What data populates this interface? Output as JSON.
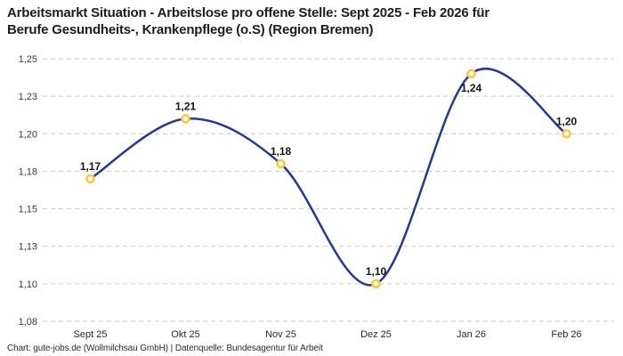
{
  "title": {
    "line1": "Arbeitsmarkt Situation - Arbeitslose pro offene Stelle: Sept 2025 - Feb 2026 für",
    "line2": "Berufe Gesundheits-, Krankenpflege (o.S) (Region Bremen)"
  },
  "footer": {
    "credit": "Chart: gute-jobs.de (Wollmilchsau GmbH) | Datenquelle: Bundesagentur für Arbeit"
  },
  "colors": {
    "line": "#283796",
    "marker_ring": "#ffc53d",
    "marker_fill": "#ffffff",
    "grid": "#c9c9c9",
    "title_text": "#1d1d1d",
    "axis_text": "#38383a",
    "point_label_text": "#141414"
  },
  "chart_data": {
    "type": "line",
    "title": "Arbeitsmarkt Situation - Arbeitslose pro offene Stelle: Sept 2025 - Feb 2026 für Berufe Gesundheits-, Krankenpflege (o.S) (Region Bremen)",
    "categories": [
      "Sept 25",
      "Okt 25",
      "Nov 25",
      "Dez 25",
      "Jan 26",
      "Feb 26"
    ],
    "values": [
      1.17,
      1.21,
      1.18,
      1.1,
      1.24,
      1.2
    ],
    "point_labels": [
      "1,17",
      "1,21",
      "1,18",
      "1,10",
      "1,24",
      "1,20"
    ],
    "label_position": [
      "above",
      "above",
      "above",
      "above",
      "below",
      "above"
    ],
    "xlabel": "",
    "ylabel": "",
    "ylim": [
      1.075,
      1.25
    ],
    "y_tick_values": [
      1.25,
      1.225,
      1.2,
      1.175,
      1.15,
      1.125,
      1.1,
      1.075
    ],
    "y_tick_labels": [
      "1,25",
      "1,23",
      "1,20",
      "1,18",
      "1,15",
      "1,13",
      "1,10",
      "1,08"
    ],
    "grid": "horizontal-dashed",
    "legend": "none",
    "curve": "smooth"
  }
}
